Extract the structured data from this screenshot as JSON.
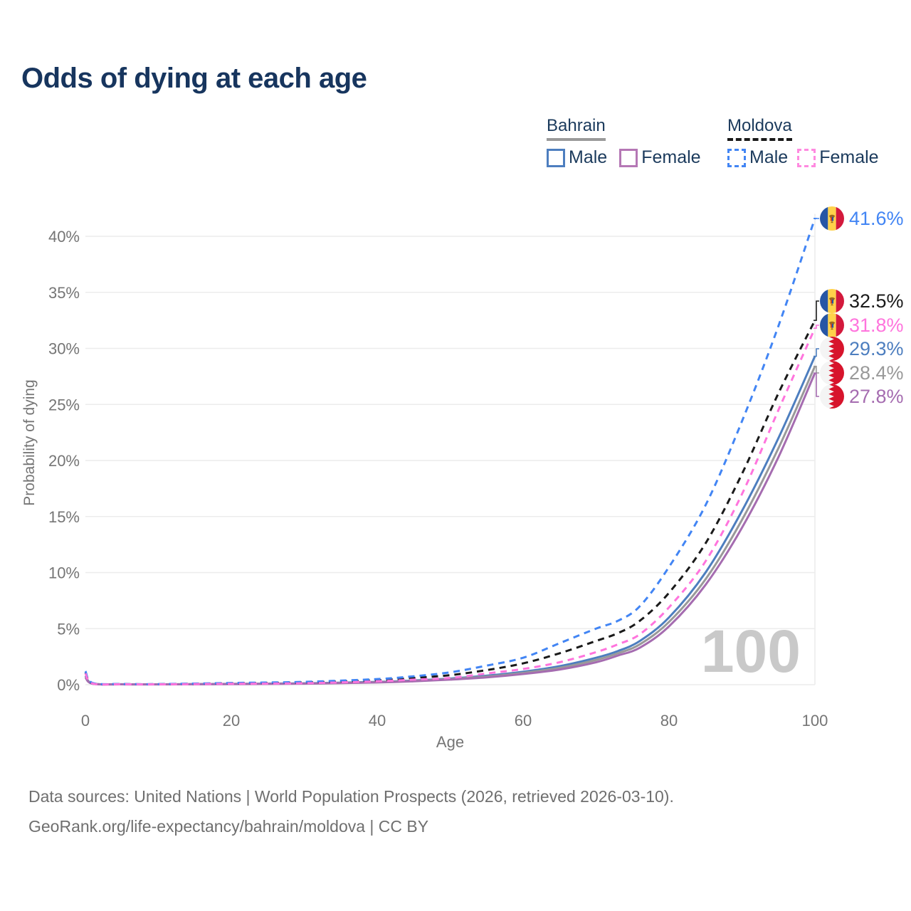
{
  "title": "Odds of dying at each age",
  "legend": {
    "groups": [
      {
        "country": "Bahrain",
        "line_style": "solid",
        "underline_color": "#9a9a9a",
        "items": [
          {
            "label": "Male",
            "color": "#4d7ebf",
            "dashed": false
          },
          {
            "label": "Female",
            "color": "#b577b5",
            "dashed": false
          }
        ]
      },
      {
        "country": "Moldova",
        "line_style": "dashed",
        "underline_color": "#1a1a1a",
        "items": [
          {
            "label": "Male",
            "color": "#4285f4",
            "dashed": true
          },
          {
            "label": "Female",
            "color": "#ff8ae0",
            "dashed": true
          }
        ]
      }
    ]
  },
  "axes": {
    "y_title": "Probability of dying",
    "x_title": "Age"
  },
  "watermark": "100",
  "annotations": [
    {
      "series": "Moldova Male",
      "flag": "moldova",
      "label": "41.6%",
      "value": 41.6,
      "color": "#4285f4"
    },
    {
      "series": "Moldova Total",
      "flag": "moldova",
      "label": "32.5%",
      "value": 32.5,
      "color": "#1a1a1a"
    },
    {
      "series": "Moldova Female",
      "flag": "moldova",
      "label": "31.8%",
      "value": 31.8,
      "color": "#ff74dd"
    },
    {
      "series": "Bahrain Male",
      "flag": "bahrain",
      "label": "29.3%",
      "value": 29.3,
      "color": "#4d7ebf"
    },
    {
      "series": "Bahrain Total",
      "flag": "bahrain",
      "label": "28.4%",
      "value": 28.4,
      "color": "#999999"
    },
    {
      "series": "Bahrain Female",
      "flag": "bahrain",
      "label": "27.8%",
      "value": 27.8,
      "color": "#a56cb0"
    }
  ],
  "footer": {
    "line1": "Data sources: United Nations | World Population Prospects (2026, retrieved 2026-03-10).",
    "line2": "GeoRank.org/life-expectancy/bahrain/moldova | CC BY"
  },
  "chart_data": {
    "type": "line",
    "title": "Odds of dying at each age",
    "xlabel": "Age",
    "ylabel": "Probability of dying",
    "xlim": [
      0,
      100
    ],
    "ylim": [
      0,
      42
    ],
    "grid": "horizontal",
    "legend_position": "top-right",
    "x_ticks": [
      {
        "value": 0,
        "label": "0"
      },
      {
        "value": 20,
        "label": "20"
      },
      {
        "value": 40,
        "label": "40"
      },
      {
        "value": 60,
        "label": "60"
      },
      {
        "value": 80,
        "label": "80"
      },
      {
        "value": 100,
        "label": "100"
      }
    ],
    "y_ticks": [
      {
        "value": 0,
        "label": "0%"
      },
      {
        "value": 5,
        "label": "5%"
      },
      {
        "value": 10,
        "label": "10%"
      },
      {
        "value": 15,
        "label": "15%"
      },
      {
        "value": 20,
        "label": "20%"
      },
      {
        "value": 25,
        "label": "25%"
      },
      {
        "value": 30,
        "label": "30%"
      },
      {
        "value": 35,
        "label": "35%"
      },
      {
        "value": 40,
        "label": "40%"
      }
    ],
    "x": [
      0,
      1,
      5,
      10,
      20,
      30,
      40,
      45,
      50,
      55,
      60,
      65,
      70,
      73,
      76,
      80,
      85,
      90,
      95,
      100
    ],
    "series": [
      {
        "name": "Bahrain Male",
        "country": "Bahrain",
        "sex": "male",
        "style": "solid",
        "color": "#4d7ebf",
        "values": [
          0.8,
          0.1,
          0.04,
          0.03,
          0.07,
          0.12,
          0.25,
          0.37,
          0.55,
          0.8,
          1.15,
          1.65,
          2.4,
          3.0,
          3.9,
          6.0,
          10.0,
          15.5,
          22.0,
          29.3
        ]
      },
      {
        "name": "Bahrain Total",
        "country": "Bahrain",
        "sex": "all",
        "style": "solid",
        "color": "#999999",
        "values": [
          0.7,
          0.09,
          0.03,
          0.03,
          0.06,
          0.1,
          0.22,
          0.33,
          0.5,
          0.72,
          1.05,
          1.5,
          2.2,
          2.8,
          3.6,
          5.6,
          9.4,
          14.7,
          21.1,
          28.4
        ]
      },
      {
        "name": "Bahrain Female",
        "country": "Bahrain",
        "sex": "female",
        "style": "solid",
        "color": "#a56cb0",
        "values": [
          0.65,
          0.08,
          0.03,
          0.02,
          0.05,
          0.09,
          0.2,
          0.3,
          0.45,
          0.65,
          0.95,
          1.35,
          2.0,
          2.6,
          3.3,
          5.2,
          8.9,
          14.0,
          20.3,
          27.8
        ]
      },
      {
        "name": "Moldova Total",
        "country": "Moldova",
        "sex": "all",
        "style": "dashed",
        "color": "#1a1a1a",
        "values": [
          1.1,
          0.12,
          0.05,
          0.04,
          0.12,
          0.2,
          0.4,
          0.6,
          0.85,
          1.3,
          1.9,
          2.8,
          3.9,
          4.6,
          5.7,
          8.2,
          12.6,
          18.8,
          26.0,
          32.5
        ]
      },
      {
        "name": "Moldova Male",
        "country": "Moldova",
        "sex": "male",
        "style": "dashed",
        "color": "#4285f4",
        "values": [
          1.2,
          0.15,
          0.06,
          0.05,
          0.15,
          0.25,
          0.5,
          0.75,
          1.1,
          1.7,
          2.4,
          3.7,
          5.0,
          5.7,
          7.0,
          10.5,
          16.0,
          23.5,
          32.0,
          41.6
        ]
      },
      {
        "name": "Moldova Female",
        "country": "Moldova",
        "sex": "female",
        "style": "dashed",
        "color": "#ff74dd",
        "values": [
          1.0,
          0.1,
          0.04,
          0.03,
          0.08,
          0.13,
          0.3,
          0.45,
          0.6,
          1.0,
          1.4,
          2.0,
          2.9,
          3.6,
          4.5,
          6.9,
          11.0,
          17.0,
          24.5,
          31.8
        ]
      }
    ]
  }
}
